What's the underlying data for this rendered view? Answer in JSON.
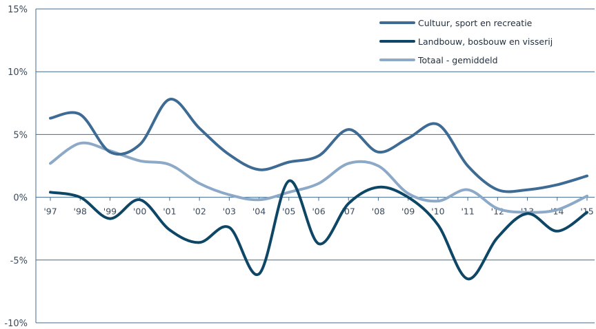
{
  "chart_data": {
    "type": "line",
    "title": "",
    "xlabel": "",
    "ylabel": "",
    "categories": [
      "'97",
      "'98",
      "'99",
      "'00",
      "'01",
      "'02",
      "'03",
      "'04",
      "'05",
      "'06",
      "'07",
      "'08",
      "'09",
      "'10",
      "'11",
      "'12",
      "'13",
      "'14",
      "'15"
    ],
    "y_tick_labels": [
      "15%",
      "10%",
      "5%",
      "0%",
      "-5%",
      "-10%"
    ],
    "y_ticks": [
      15,
      10,
      5,
      0,
      -5,
      -10
    ],
    "ylim": [
      -10,
      15
    ],
    "grid": "horizontal",
    "legend_position": "top-right",
    "series": [
      {
        "name": "Cultuur, sport en recreatie",
        "color": "#3d6b93",
        "values": [
          6.3,
          6.6,
          3.6,
          4.2,
          7.8,
          5.5,
          3.4,
          2.2,
          2.8,
          3.3,
          5.4,
          3.6,
          4.7,
          5.8,
          2.5,
          0.6,
          0.6,
          1.0,
          1.7
        ]
      },
      {
        "name": "Landbouw, bosbouw en visserij",
        "color": "#0e4666",
        "values": [
          0.4,
          0.0,
          -1.7,
          -0.2,
          -2.6,
          -3.6,
          -2.4,
          -6.1,
          1.3,
          -3.7,
          -0.5,
          0.8,
          0.0,
          -2.2,
          -6.5,
          -3.2,
          -1.3,
          -2.7,
          -1.2
        ]
      },
      {
        "name": "Totaal - gemiddeld",
        "color": "#8da9c8",
        "values": [
          2.7,
          4.3,
          3.7,
          2.9,
          2.6,
          1.1,
          0.2,
          -0.2,
          0.4,
          1.1,
          2.7,
          2.5,
          0.3,
          -0.3,
          0.6,
          -0.9,
          -1.2,
          -1.0,
          0.1
        ]
      }
    ]
  }
}
